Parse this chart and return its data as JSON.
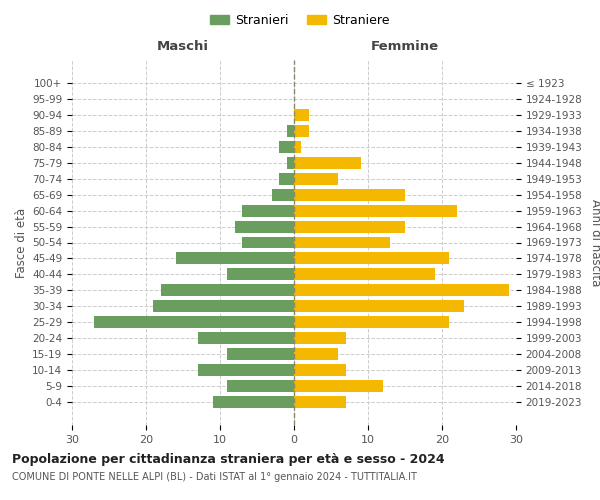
{
  "age_groups": [
    "0-4",
    "5-9",
    "10-14",
    "15-19",
    "20-24",
    "25-29",
    "30-34",
    "35-39",
    "40-44",
    "45-49",
    "50-54",
    "55-59",
    "60-64",
    "65-69",
    "70-74",
    "75-79",
    "80-84",
    "85-89",
    "90-94",
    "95-99",
    "100+"
  ],
  "birth_years": [
    "2019-2023",
    "2014-2018",
    "2009-2013",
    "2004-2008",
    "1999-2003",
    "1994-1998",
    "1989-1993",
    "1984-1988",
    "1979-1983",
    "1974-1978",
    "1969-1973",
    "1964-1968",
    "1959-1963",
    "1954-1958",
    "1949-1953",
    "1944-1948",
    "1939-1943",
    "1934-1938",
    "1929-1933",
    "1924-1928",
    "≤ 1923"
  ],
  "maschi": [
    11,
    9,
    13,
    9,
    13,
    27,
    19,
    18,
    9,
    16,
    7,
    8,
    7,
    3,
    2,
    1,
    2,
    1,
    0,
    0,
    0
  ],
  "femmine": [
    7,
    12,
    7,
    6,
    7,
    21,
    23,
    29,
    19,
    21,
    13,
    15,
    22,
    15,
    6,
    9,
    1,
    2,
    2,
    0,
    0
  ],
  "color_maschi": "#6a9e5e",
  "color_femmine": "#f5b800",
  "title": "Popolazione per cittadinanza straniera per età e sesso - 2024",
  "subtitle": "COMUNE DI PONTE NELLE ALPI (BL) - Dati ISTAT al 1° gennaio 2024 - TUTTITALIA.IT",
  "ylabel_left": "Fasce di età",
  "ylabel_right": "Anni di nascita",
  "xlabel_maschi": "Maschi",
  "xlabel_femmine": "Femmine",
  "legend_maschi": "Stranieri",
  "legend_femmine": "Straniere",
  "xlim": 30,
  "background_color": "#ffffff",
  "grid_color": "#cccccc"
}
